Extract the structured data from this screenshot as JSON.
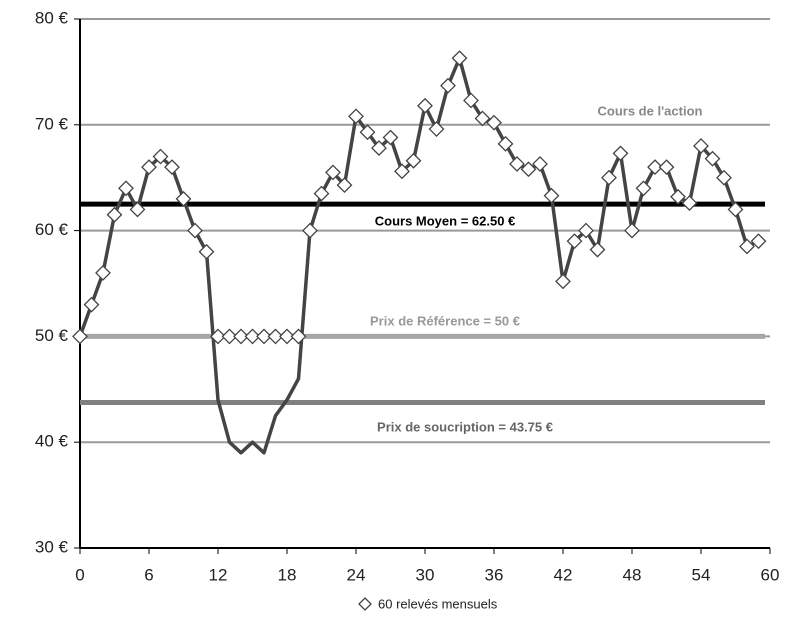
{
  "chart_data": {
    "type": "line",
    "x": [
      0,
      1,
      2,
      3,
      4,
      5,
      6,
      7,
      8,
      9,
      10,
      11,
      12,
      13,
      14,
      15,
      16,
      17,
      18,
      19,
      20,
      21,
      22,
      23,
      24,
      25,
      26,
      27,
      28,
      29,
      30,
      31,
      32,
      33,
      34,
      35,
      36,
      37,
      38,
      39,
      40,
      41,
      42,
      43,
      44,
      45,
      46,
      47,
      48,
      49,
      50,
      51,
      52,
      53,
      54,
      55,
      56,
      57,
      58,
      59
    ],
    "series": [
      {
        "name": "Cours de l'action",
        "color": "#444444",
        "marker": "none",
        "values": [
          50,
          53,
          56,
          61.5,
          64,
          62,
          66,
          67,
          66,
          63,
          60,
          58,
          44,
          40,
          39,
          40,
          39,
          42.5,
          44,
          46,
          60,
          63.5,
          65.5,
          64.3,
          70.8,
          69.3,
          67.8,
          68.8,
          65.6,
          66.6,
          71.8,
          69.6,
          73.7,
          76.3,
          72.3,
          70.6,
          70.2,
          68.2,
          66.3,
          65.8,
          66.3,
          63.3,
          55.2,
          59,
          60,
          58.2,
          65,
          67.3,
          60,
          64,
          66,
          66,
          63.2,
          62.6,
          68,
          66.8,
          65,
          62,
          58.5,
          59
        ]
      },
      {
        "name": "60 relevés mensuels",
        "color": "#444444",
        "marker": "diamond",
        "values": [
          50,
          53,
          56,
          61.5,
          64,
          62,
          66,
          67,
          66,
          63,
          60,
          58,
          50,
          50,
          50,
          50,
          50,
          50,
          50,
          50,
          60,
          63.5,
          65.5,
          64.3,
          70.8,
          69.3,
          67.8,
          68.8,
          65.6,
          66.6,
          71.8,
          69.6,
          73.7,
          76.3,
          72.3,
          70.6,
          70.2,
          68.2,
          66.3,
          65.8,
          66.3,
          63.3,
          55.2,
          59,
          60,
          58.2,
          65,
          67.3,
          60,
          64,
          66,
          66,
          63.2,
          62.6,
          68,
          66.8,
          65,
          62,
          58.5,
          59
        ]
      }
    ],
    "reference_lines": [
      {
        "value": 62.5,
        "label": "Cours Moyen = 62.50 €",
        "color": "#000000"
      },
      {
        "value": 50,
        "label": "Prix de Référence = 50 €",
        "color": "#a6a6a6"
      },
      {
        "value": 43.75,
        "label": "Prix de soucription = 43.75 €",
        "color": "#808080"
      }
    ],
    "xlim": [
      0,
      60
    ],
    "xticks": [
      0,
      6,
      12,
      18,
      24,
      30,
      36,
      42,
      48,
      54,
      60
    ],
    "ylim": [
      30,
      80
    ],
    "yticks": [
      {
        "value": 30,
        "label": "30 €"
      },
      {
        "value": 40,
        "label": "40 €"
      },
      {
        "value": 50,
        "label": "50 €"
      },
      {
        "value": 60,
        "label": "60 €"
      },
      {
        "value": 70,
        "label": "70 €"
      },
      {
        "value": 80,
        "label": "80 €"
      }
    ],
    "grid": true,
    "legend": "bottom"
  }
}
